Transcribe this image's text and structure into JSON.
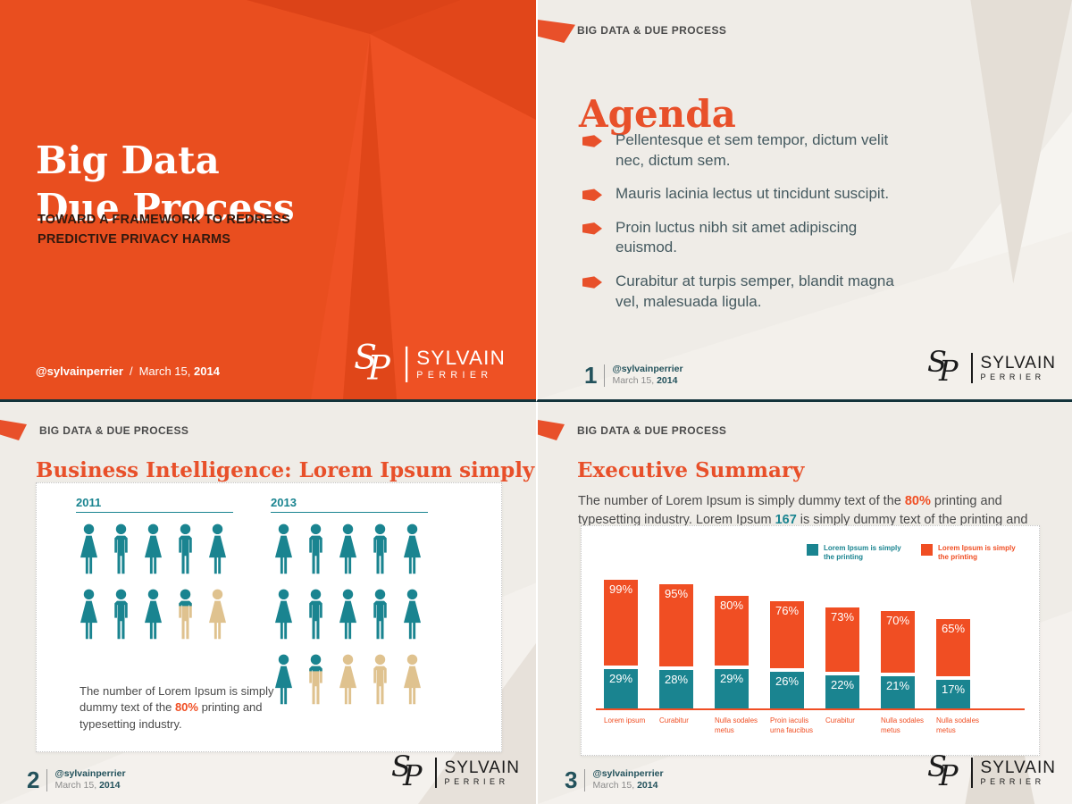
{
  "brand": {
    "handle": "@sylvainperrier",
    "date_prefix": "March 15, ",
    "date_year": "2014",
    "monogram_s": "S",
    "monogram_p": "P",
    "wordmark_line1": "SYLVAIN",
    "wordmark_line2": "PERRIER"
  },
  "colors": {
    "orange": "#E94E1F",
    "accent_orange": "#F04E23",
    "teal": "#1A8490",
    "tan": "#DFC28F",
    "slate_text": "#44595F",
    "footer_teal": "#23525C",
    "beige": "#EFECE7"
  },
  "slide1": {
    "title_line1": "Big Data",
    "title_line2": "Due Process",
    "subtitle_line1": "TOWARD  A FRAMEWORK TO REDRESS",
    "subtitle_line2": "PREDICTIVE PRIVACY HARMS",
    "footer_separator": "/"
  },
  "slide2": {
    "header": "BIG DATA & DUE PROCESS",
    "title": "Agenda",
    "page_number": "1",
    "bullets": [
      "Pellentesque et sem tempor, dictum velit nec, dictum sem.",
      "Mauris lacinia lectus ut tincidunt suscipit.",
      "Proin luctus nibh sit amet adipiscing euismod.",
      "Curabitur at turpis semper, blandit magna vel, malesuada ligula."
    ]
  },
  "slide3": {
    "header": "BIG DATA & DUE PROCESS",
    "title": "Business Intelligence: Lorem Ipsum simply",
    "page_number": "2",
    "caption_segments": [
      {
        "text": "The number of Lorem Ipsum is simply dummy text of the ",
        "style": "plain"
      },
      {
        "text": "80%",
        "style": "orange"
      },
      {
        "text": " printing and typesetting industry.",
        "style": "plain"
      }
    ]
  },
  "slide4": {
    "header": "BIG DATA & DUE PROCESS",
    "title": "Executive Summary",
    "page_number": "3",
    "intro_segments": [
      {
        "text": "The number of Lorem Ipsum is simply dummy text of the ",
        "style": "plain"
      },
      {
        "text": "80%",
        "style": "orange"
      },
      {
        "text": " printing and typesetting industry. Lorem Ipsum ",
        "style": "plain"
      },
      {
        "text": "167",
        "style": "teal"
      },
      {
        "text": " is simply dummy text of the printing and",
        "style": "plain"
      }
    ]
  },
  "chart_data": [
    {
      "type": "pictograph",
      "title": "Business Intelligence: Lorem Ipsum simply",
      "icon_colors": {
        "teal": "#1A8490",
        "tan": "#DFC28F"
      },
      "groups": [
        {
          "label": "2011",
          "rows": [
            [
              "woman-teal",
              "man-teal",
              "woman-teal",
              "man-teal",
              "woman-teal"
            ],
            [
              "woman-teal",
              "man-teal",
              "woman-teal",
              "man-split",
              "woman-tan"
            ]
          ]
        },
        {
          "label": "2013",
          "rows": [
            [
              "woman-teal",
              "man-teal",
              "woman-teal",
              "man-teal",
              "woman-teal"
            ],
            [
              "woman-teal",
              "man-teal",
              "woman-teal",
              "man-teal",
              "woman-teal"
            ],
            [
              "woman-teal",
              "man-split",
              "woman-tan",
              "man-tan",
              "woman-tan"
            ]
          ]
        }
      ],
      "caption": "The number of Lorem Ipsum is simply dummy text of the 80% printing and typesetting industry."
    },
    {
      "type": "bar",
      "stacked": true,
      "categories": [
        "Lorem ipsum",
        "Curabitur",
        "Nulla sodales metus",
        "Proin iaculis urna faucibus",
        "Curabitur",
        "Nulla sodales metus",
        "Nulla sodales metus"
      ],
      "series": [
        {
          "name": "Lorem Ipsum is simply the printing",
          "color": "#1A8490",
          "values": [
            29,
            28,
            29,
            26,
            22,
            21,
            17
          ]
        },
        {
          "name": "Lorem Ipsum is simply the printing",
          "color": "#F04E23",
          "values": [
            99,
            95,
            80,
            76,
            73,
            70,
            65
          ]
        }
      ],
      "value_suffix": "%",
      "legend_position": "top-right",
      "baseline_color": "#F04E23",
      "ylim": [
        0,
        100
      ]
    }
  ]
}
